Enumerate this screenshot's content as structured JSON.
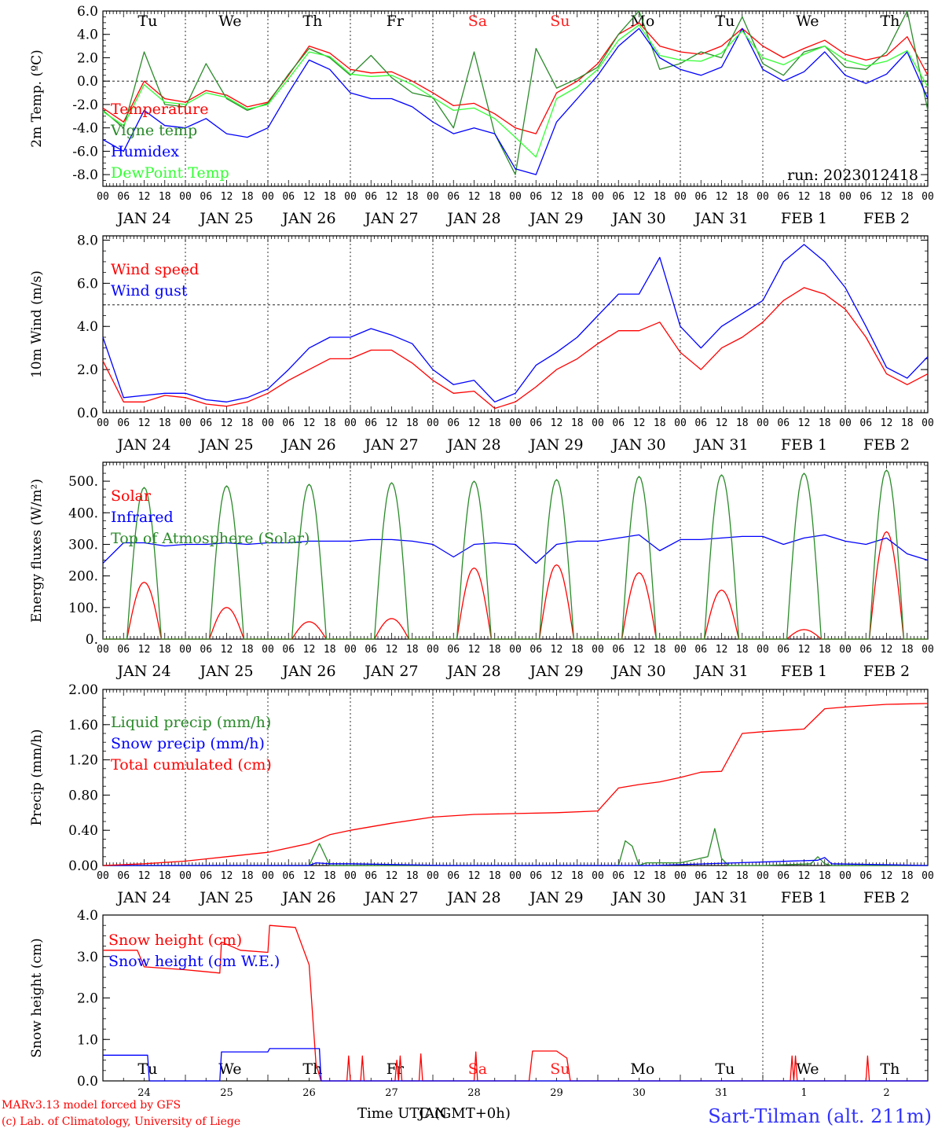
{
  "figure": {
    "day_labels": [
      "JAN 24",
      "JAN 25",
      "JAN 26",
      "JAN 27",
      "JAN 28",
      "JAN 29",
      "JAN 30",
      "JAN 31",
      "FEB  1",
      "FEB  2"
    ],
    "hour_labels": [
      "00",
      "06",
      "12",
      "18"
    ],
    "weekday_labels": [
      "Tu",
      "We",
      "Th",
      "Fr",
      "Sa",
      "Su",
      "Mo",
      "Tu",
      "We",
      "Th"
    ],
    "weekend_color": "#ff2020",
    "bottom_day_numbers": [
      "24",
      "25",
      "26",
      "27",
      "28",
      "29",
      "30",
      "31",
      "1",
      "2"
    ],
    "time_axis_label": "Time UTC (GMT+0h)",
    "time_axis_overlap": "JAN",
    "credit_line1": "MARv3.13 model forced by GFS",
    "credit_line2": "(c) Lab. of Climatology, University of Liege",
    "station": "Sart-Tilman (alt. 211m)",
    "run_label": "run: 2023012418"
  },
  "chart_data": [
    {
      "type": "line",
      "ylabel": "2m Temp. (ºC)",
      "ylim": [
        -9,
        6
      ],
      "yticks": [
        "-8.0",
        "-6.0",
        "-4.0",
        "-2.0",
        "0.0",
        "2.0",
        "4.0",
        "6.0"
      ],
      "reference_line": 0,
      "x_unit": "hours since JAN 24 00 UTC",
      "series": [
        {
          "name": "Temperature",
          "color": "#ff0000",
          "x": [
            0,
            6,
            12,
            18,
            24,
            30,
            36,
            42,
            48,
            54,
            60,
            66,
            72,
            78,
            84,
            90,
            96,
            102,
            108,
            114,
            120,
            126,
            132,
            138,
            144,
            150,
            156,
            162,
            168,
            174,
            180,
            186,
            192,
            198,
            204,
            210,
            216,
            222,
            228,
            234,
            240
          ],
          "values": [
            -2.3,
            -3.5,
            0.0,
            -1.5,
            -1.8,
            -0.8,
            -1.2,
            -2.2,
            -1.8,
            0.5,
            3.0,
            2.4,
            1.0,
            0.7,
            0.8,
            0.0,
            -1.0,
            -2.1,
            -1.9,
            -2.8,
            -4.0,
            -4.5,
            -1.0,
            0.0,
            1.5,
            4.0,
            5.0,
            3.0,
            2.5,
            2.3,
            3.0,
            4.5,
            3.0,
            2.0,
            2.8,
            3.5,
            2.3,
            1.8,
            2.2,
            3.8,
            0.5
          ]
        },
        {
          "name": "Vigne temp",
          "color": "#2a8a2a",
          "x": [
            0,
            6,
            12,
            18,
            24,
            30,
            36,
            42,
            48,
            54,
            60,
            66,
            72,
            78,
            84,
            90,
            96,
            102,
            108,
            114,
            120,
            126,
            132,
            138,
            144,
            150,
            156,
            162,
            168,
            174,
            180,
            186,
            192,
            198,
            204,
            210,
            216,
            222,
            228,
            234,
            240
          ],
          "values": [
            -2.5,
            -4.0,
            2.5,
            -2.0,
            -2.2,
            1.5,
            -1.5,
            -2.5,
            -1.9,
            0.6,
            2.8,
            2.0,
            0.5,
            2.2,
            0.3,
            -1.0,
            -1.4,
            -4.0,
            2.5,
            -4.5,
            -8.0,
            2.8,
            -0.6,
            0.2,
            1.2,
            4.0,
            6.0,
            1.0,
            1.5,
            2.5,
            2.0,
            5.5,
            1.5,
            0.5,
            2.5,
            3.0,
            1.2,
            1.0,
            2.5,
            6.0,
            -2.5
          ]
        },
        {
          "name": "Humidex",
          "color": "#0000ff",
          "x": [
            0,
            6,
            12,
            18,
            24,
            30,
            36,
            42,
            48,
            54,
            60,
            66,
            72,
            78,
            84,
            90,
            96,
            102,
            108,
            114,
            120,
            126,
            132,
            138,
            144,
            150,
            156,
            162,
            168,
            174,
            180,
            186,
            192,
            198,
            204,
            210,
            216,
            222,
            228,
            234,
            240
          ],
          "values": [
            -5.0,
            -6.0,
            -2.5,
            -3.8,
            -4.0,
            -3.2,
            -4.5,
            -4.8,
            -4.0,
            -1.0,
            1.8,
            1.0,
            -1.0,
            -1.5,
            -1.5,
            -2.2,
            -3.5,
            -4.5,
            -4.0,
            -4.5,
            -7.5,
            -8.0,
            -3.5,
            -1.5,
            0.5,
            3.0,
            4.5,
            2.0,
            1.0,
            0.5,
            1.2,
            4.5,
            1.0,
            0.0,
            0.8,
            2.5,
            0.5,
            -0.2,
            0.6,
            2.5,
            -1.5
          ]
        },
        {
          "name": "DewPoint Temp",
          "color": "#33ff33",
          "x": [
            0,
            6,
            12,
            18,
            24,
            30,
            36,
            42,
            48,
            54,
            60,
            66,
            72,
            78,
            84,
            90,
            96,
            102,
            108,
            114,
            120,
            126,
            132,
            138,
            144,
            150,
            156,
            162,
            168,
            174,
            180,
            186,
            192,
            198,
            204,
            210,
            216,
            222,
            228,
            234,
            240
          ],
          "values": [
            -2.6,
            -3.8,
            -0.3,
            -1.8,
            -2.0,
            -1.0,
            -1.4,
            -2.4,
            -2.0,
            0.2,
            2.5,
            2.1,
            0.6,
            0.4,
            0.5,
            -0.3,
            -1.4,
            -2.5,
            -2.3,
            -3.2,
            -4.8,
            -6.5,
            -1.5,
            -0.5,
            1.0,
            3.5,
            4.8,
            2.2,
            1.8,
            1.7,
            2.4,
            4.3,
            2.0,
            1.4,
            2.3,
            3.0,
            1.8,
            1.3,
            1.7,
            2.6,
            -0.5
          ]
        }
      ]
    },
    {
      "type": "line",
      "ylabel": "10m Wind (m/s)",
      "ylim": [
        0,
        8.2
      ],
      "yticks": [
        "0.0",
        "2.0",
        "4.0",
        "6.0",
        "8.0"
      ],
      "reference_line": 5,
      "x_unit": "hours since JAN 24 00 UTC",
      "series": [
        {
          "name": "Wind speed",
          "color": "#ff0000",
          "x": [
            0,
            6,
            12,
            18,
            24,
            30,
            36,
            42,
            48,
            54,
            60,
            66,
            72,
            78,
            84,
            90,
            96,
            102,
            108,
            114,
            120,
            126,
            132,
            138,
            144,
            150,
            156,
            162,
            168,
            174,
            180,
            186,
            192,
            198,
            204,
            210,
            216,
            222,
            228,
            234,
            240
          ],
          "values": [
            2.4,
            0.5,
            0.5,
            0.8,
            0.7,
            0.4,
            0.3,
            0.5,
            0.9,
            1.5,
            2.0,
            2.5,
            2.5,
            2.9,
            2.9,
            2.3,
            1.5,
            0.9,
            1.0,
            0.2,
            0.5,
            1.2,
            2.0,
            2.5,
            3.2,
            3.8,
            3.8,
            4.2,
            2.8,
            2.0,
            3.0,
            3.5,
            4.2,
            5.2,
            5.8,
            5.5,
            4.8,
            3.5,
            1.8,
            1.3,
            1.8
          ]
        },
        {
          "name": "Wind gust",
          "color": "#0000ff",
          "x": [
            0,
            6,
            12,
            18,
            24,
            30,
            36,
            42,
            48,
            54,
            60,
            66,
            72,
            78,
            84,
            90,
            96,
            102,
            108,
            114,
            120,
            126,
            132,
            138,
            144,
            150,
            156,
            162,
            168,
            174,
            180,
            186,
            192,
            198,
            204,
            210,
            216,
            222,
            228,
            234,
            240
          ],
          "values": [
            3.5,
            0.7,
            0.8,
            0.9,
            0.9,
            0.6,
            0.5,
            0.7,
            1.1,
            2.0,
            3.0,
            3.5,
            3.5,
            3.9,
            3.6,
            3.2,
            2.0,
            1.3,
            1.5,
            0.5,
            0.9,
            2.2,
            2.8,
            3.5,
            4.5,
            5.5,
            5.5,
            7.2,
            4.0,
            3.0,
            4.0,
            4.6,
            5.2,
            7.0,
            7.8,
            7.0,
            5.8,
            4.0,
            2.1,
            1.6,
            2.6
          ]
        }
      ]
    },
    {
      "type": "line",
      "ylabel": "Energy fluxes (W/m²)",
      "ylim": [
        0,
        560
      ],
      "yticks": [
        "0.",
        "100.",
        "200.",
        "300.",
        "400.",
        "500."
      ],
      "reference_line": null,
      "x_unit": "hours since JAN 24 00 UTC",
      "series": [
        {
          "name": "Solar",
          "color": "#ff0000",
          "shape": "daily_peaks",
          "peak_hour": 12,
          "peaks": [
            180,
            100,
            55,
            65,
            225,
            235,
            210,
            155,
            30,
            340
          ]
        },
        {
          "name": "Infrared",
          "color": "#0000ff",
          "x": [
            0,
            6,
            12,
            18,
            24,
            30,
            36,
            42,
            48,
            54,
            60,
            66,
            72,
            78,
            84,
            90,
            96,
            102,
            108,
            114,
            120,
            126,
            132,
            138,
            144,
            150,
            156,
            162,
            168,
            174,
            180,
            186,
            192,
            198,
            204,
            210,
            216,
            222,
            228,
            234,
            240
          ],
          "values": [
            240,
            305,
            305,
            295,
            300,
            300,
            305,
            300,
            305,
            305,
            310,
            310,
            310,
            315,
            315,
            310,
            300,
            260,
            300,
            305,
            300,
            240,
            300,
            310,
            310,
            320,
            330,
            280,
            315,
            315,
            320,
            325,
            325,
            300,
            320,
            330,
            310,
            300,
            320,
            270,
            250
          ]
        },
        {
          "name": "Top of Atmosphere (Solar)",
          "color": "#2a8a2a",
          "shape": "daily_peaks",
          "peak_hour": 12,
          "peaks": [
            480,
            485,
            490,
            495,
            500,
            505,
            515,
            520,
            525,
            535
          ]
        }
      ]
    },
    {
      "type": "line",
      "ylabel": "Precip (mm/h)",
      "ylim": [
        0,
        2.0
      ],
      "yticks": [
        "0.00",
        "0.40",
        "0.80",
        "1.20",
        "1.60",
        "2.00"
      ],
      "reference_line": null,
      "x_unit": "hours since JAN 24 00 UTC",
      "series": [
        {
          "name": "Liquid precip (mm/h)",
          "color": "#2a8a2a",
          "x": [
            0,
            36,
            48,
            60,
            63,
            66,
            72,
            84,
            150,
            152,
            154,
            156,
            158,
            168,
            176,
            178,
            180,
            182,
            192,
            206,
            208,
            210,
            212,
            240
          ],
          "values": [
            0,
            0,
            0,
            0,
            0.25,
            0,
            0,
            0,
            0,
            0.28,
            0.22,
            0,
            0.03,
            0.03,
            0.1,
            0.42,
            0.08,
            0,
            0,
            0.02,
            0.1,
            0.02,
            0,
            0
          ]
        },
        {
          "name": "Snow precip (mm/h)",
          "color": "#0000ff",
          "x": [
            0,
            60,
            62,
            66,
            72,
            100,
            160,
            208,
            210,
            212,
            240
          ],
          "values": [
            0,
            0,
            0.03,
            0.02,
            0.02,
            0,
            0,
            0.06,
            0.09,
            0.02,
            0
          ]
        },
        {
          "name": "Total cumulated (cm)",
          "color": "#ff0000",
          "x": [
            0,
            12,
            24,
            36,
            48,
            60,
            66,
            72,
            84,
            96,
            108,
            120,
            132,
            144,
            150,
            156,
            162,
            168,
            174,
            180,
            186,
            192,
            204,
            210,
            216,
            228,
            240
          ],
          "values": [
            0,
            0.02,
            0.05,
            0.1,
            0.15,
            0.25,
            0.35,
            0.4,
            0.48,
            0.55,
            0.58,
            0.59,
            0.6,
            0.62,
            0.88,
            0.92,
            0.95,
            1.0,
            1.06,
            1.07,
            1.5,
            1.52,
            1.55,
            1.78,
            1.8,
            1.83,
            1.84
          ]
        }
      ]
    },
    {
      "type": "line",
      "ylabel": "Snow height (cm)",
      "ylim": [
        0,
        4.0
      ],
      "yticks": [
        "0.0",
        "1.0",
        "2.0",
        "3.0",
        "4.0"
      ],
      "reference_line": null,
      "x_unit": "hours since JAN 24 00 UTC",
      "series": [
        {
          "name": "Snow height (cm)",
          "color": "#ff0000",
          "x": [
            0,
            10,
            12,
            24,
            34,
            34.5,
            40,
            48,
            48.5,
            56,
            60,
            62,
            63.5,
            64,
            71,
            71.5,
            72,
            75,
            75.5,
            76,
            85,
            85.5,
            86,
            86.5,
            87,
            92,
            92.5,
            93,
            108,
            108.5,
            109,
            124,
            125,
            132,
            135,
            136,
            200,
            200.5,
            201,
            201.5,
            202,
            222,
            222.5,
            223,
            240
          ],
          "values": [
            3.15,
            3.15,
            2.75,
            2.68,
            2.6,
            3.35,
            3.15,
            3.1,
            3.75,
            3.7,
            2.8,
            0.4,
            0,
            0,
            0,
            0.6,
            0,
            0,
            0.6,
            0,
            0,
            0.5,
            0,
            0.6,
            0,
            0,
            0.65,
            0,
            0,
            0.7,
            0,
            0,
            0.72,
            0.72,
            0.55,
            0,
            0,
            0.6,
            0,
            0.6,
            0,
            0,
            0.6,
            0,
            0
          ]
        },
        {
          "name": "Snow height (cm W.E.)",
          "color": "#0000ff",
          "x": [
            0,
            13,
            13.5,
            34,
            34.5,
            48,
            48.5,
            63,
            63.5,
            240
          ],
          "values": [
            0.62,
            0.62,
            0,
            0,
            0.7,
            0.7,
            0.78,
            0.78,
            0,
            0
          ]
        }
      ]
    }
  ]
}
